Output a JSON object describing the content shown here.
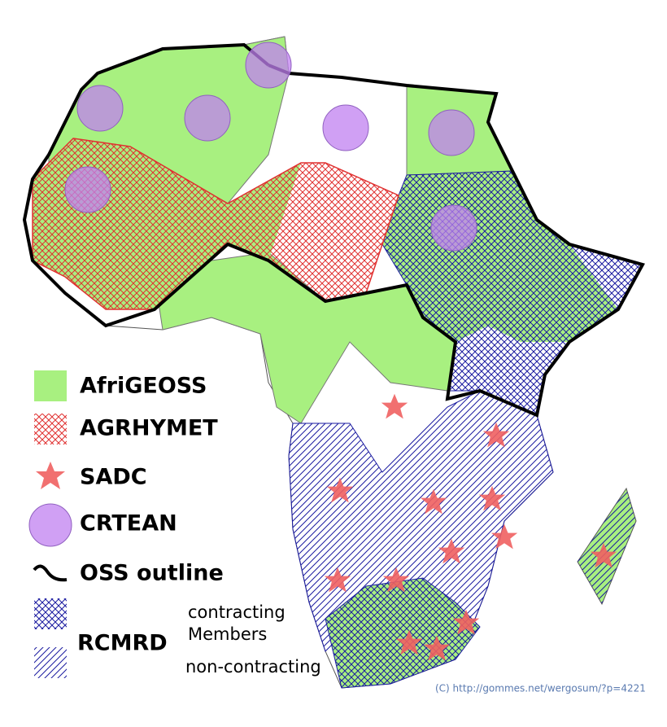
{
  "legend": {
    "items": [
      "AfriGEOSS",
      "AGRHYMET",
      "SADC",
      "CRTEAN",
      "OSS outline"
    ],
    "rcmrd": {
      "label": "RCMRD",
      "contracting": "contracting",
      "members": "Members",
      "non_contracting": "non-contracting"
    }
  },
  "credit": "(C) http://gommes.net/wergosum/?p=4221"
}
